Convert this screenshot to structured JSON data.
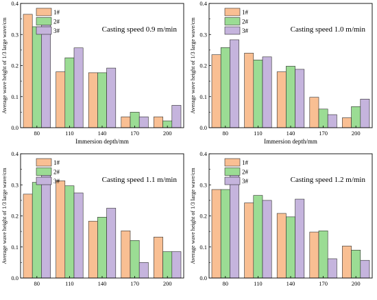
{
  "colors": {
    "1#": "#f9bf93",
    "2#": "#9bdc94",
    "3#": "#c5b4dd",
    "stroke": "#2b2b2b"
  },
  "chart_data": [
    {
      "type": "bar",
      "title": "Casting speed 0.9 m/min",
      "xlabel": "Immersion depth/mm",
      "ylabel": "Average wave height of 1/3 large wave/cm",
      "categories": [
        "80",
        "110",
        "140",
        "170",
        "200"
      ],
      "ylim": [
        0,
        0.4
      ],
      "yticks": [
        "0.0",
        "0.1",
        "0.2",
        "0.3",
        "0.4"
      ],
      "legend": "top-left",
      "series": [
        {
          "name": "1#",
          "values": [
            0.365,
            0.18,
            0.177,
            0.035,
            0.035
          ]
        },
        {
          "name": "2#",
          "values": [
            0.325,
            0.225,
            0.177,
            0.05,
            0.022
          ]
        },
        {
          "name": "3#",
          "values": [
            0.34,
            0.257,
            0.192,
            0.035,
            0.072
          ]
        }
      ]
    },
    {
      "type": "bar",
      "title": "Casting speed 1.0 m/min",
      "xlabel": "Immersion depth/mm",
      "ylabel": "Average wave height of 1/3 large wave/cm",
      "categories": [
        "80",
        "110",
        "140",
        "170",
        "200"
      ],
      "ylim": [
        0,
        0.4
      ],
      "yticks": [
        "0.0",
        "0.1",
        "0.2",
        "0.3",
        "0.4"
      ],
      "legend": "top-left",
      "series": [
        {
          "name": "1#",
          "values": [
            0.235,
            0.24,
            0.18,
            0.098,
            0.032
          ]
        },
        {
          "name": "2#",
          "values": [
            0.258,
            0.218,
            0.198,
            0.06,
            0.068
          ]
        },
        {
          "name": "3#",
          "values": [
            0.283,
            0.228,
            0.188,
            0.042,
            0.092
          ]
        }
      ]
    },
    {
      "type": "bar",
      "title": "Casting speed 1.1 m/min",
      "xlabel": "",
      "ylabel": "Average wave height of 1/3 large wave/cm",
      "categories": [
        "80",
        "110",
        "140",
        "170",
        "200"
      ],
      "ylim": [
        0,
        0.4
      ],
      "yticks": [
        "0.0",
        "0.1",
        "0.2",
        "0.3",
        "0.4"
      ],
      "legend": "top-left",
      "series": [
        {
          "name": "1#",
          "values": [
            0.27,
            0.313,
            0.183,
            0.152,
            0.132
          ]
        },
        {
          "name": "2#",
          "values": [
            0.308,
            0.297,
            0.196,
            0.121,
            0.085
          ]
        },
        {
          "name": "3#",
          "values": [
            0.342,
            0.274,
            0.225,
            0.05,
            0.085
          ]
        }
      ]
    },
    {
      "type": "bar",
      "title": "Casting speed 1.2 m/min",
      "xlabel": "",
      "ylabel": "Average wave height of 1/3 large wave/cm",
      "categories": [
        "80",
        "110",
        "140",
        "170",
        "200"
      ],
      "ylim": [
        0,
        0.4
      ],
      "yticks": [
        "0.0",
        "0.1",
        "0.2",
        "0.3",
        "0.4"
      ],
      "legend": "top-left",
      "series": [
        {
          "name": "1#",
          "values": [
            0.285,
            0.242,
            0.208,
            0.148,
            0.103
          ]
        },
        {
          "name": "2#",
          "values": [
            0.285,
            0.266,
            0.197,
            0.152,
            0.09
          ]
        },
        {
          "name": "3#",
          "values": [
            0.352,
            0.25,
            0.254,
            0.062,
            0.057
          ]
        }
      ]
    }
  ]
}
